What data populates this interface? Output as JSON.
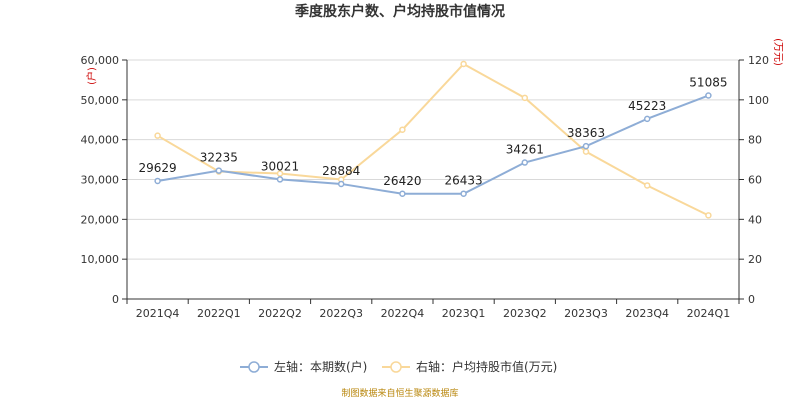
{
  "chart_data": {
    "type": "line",
    "title": "季度股东户数、户均持股市值情况",
    "categories": [
      "2021Q4",
      "2022Q1",
      "2022Q2",
      "2022Q3",
      "2022Q4",
      "2023Q1",
      "2023Q2",
      "2023Q3",
      "2023Q4",
      "2024Q1"
    ],
    "left_axis": {
      "unit": "(户)",
      "ylim": [
        0,
        60000
      ],
      "ticks": [
        "0",
        "10,000",
        "20,000",
        "30,000",
        "40,000",
        "50,000",
        "60,000"
      ]
    },
    "right_axis": {
      "unit": "(万元)",
      "ylim": [
        0,
        120
      ],
      "ticks": [
        "0",
        "20",
        "40",
        "60",
        "80",
        "100",
        "120"
      ]
    },
    "series": [
      {
        "name": "左轴：本期数(户)",
        "axis": "left",
        "color": "#8eadd6",
        "values": [
          29629,
          32235,
          30021,
          28884,
          26420,
          26433,
          34261,
          38363,
          45223,
          51085
        ],
        "labels": [
          "29629",
          "32235",
          "30021",
          "28884",
          "26420",
          "26433",
          "34261",
          "38363",
          "45223",
          "51085"
        ]
      },
      {
        "name": "右轴：户均持股市值(万元)",
        "axis": "right",
        "color": "#f9d89a",
        "values": [
          82,
          64,
          63,
          60,
          85,
          118,
          101,
          74,
          57,
          42
        ]
      }
    ],
    "grid": true,
    "legend_position": "bottom"
  },
  "footer": {
    "source": "制图数据来自恒生聚源数据库"
  }
}
